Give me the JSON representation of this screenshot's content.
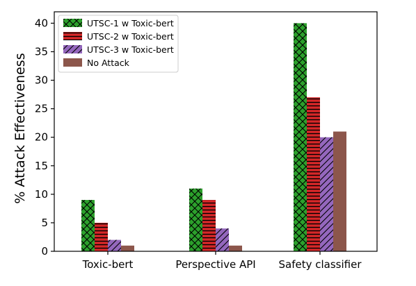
{
  "chart_data": {
    "type": "bar",
    "title": "",
    "xlabel": "",
    "ylabel": "% Attack Effectiveness",
    "ylim": [
      0,
      42
    ],
    "yticks": [
      0,
      5,
      10,
      15,
      20,
      25,
      30,
      35,
      40
    ],
    "categories": [
      "Toxic-bert",
      "Perspective API",
      "Safety classifier"
    ],
    "series": [
      {
        "name": "UTSC-1 w Toxic-bert",
        "values": [
          9,
          11,
          40
        ],
        "color": "#2ca02c",
        "hatch": "crosshatch"
      },
      {
        "name": "UTSC-2 w Toxic-bert",
        "values": [
          5,
          9,
          27
        ],
        "color": "#d62728",
        "hatch": "horizontal"
      },
      {
        "name": "UTSC-3 w Toxic-bert",
        "values": [
          2,
          4,
          20
        ],
        "color": "#9467bd",
        "hatch": "diagonal"
      },
      {
        "name": "No Attack",
        "values": [
          1,
          1,
          21
        ],
        "color": "#8c564b",
        "hatch": "none"
      }
    ],
    "grid": false,
    "legend_position": "top-left"
  }
}
